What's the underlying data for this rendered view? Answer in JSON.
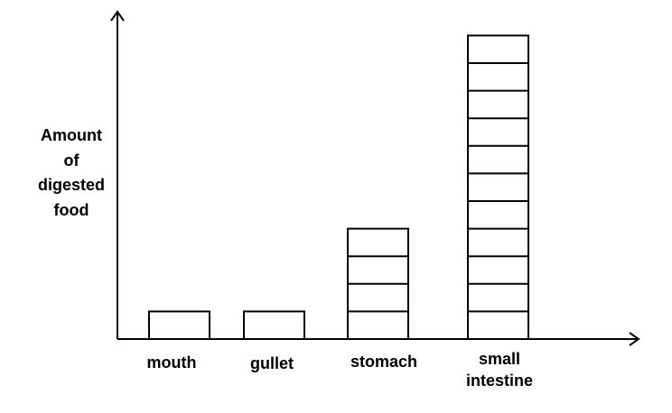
{
  "chart_data": {
    "type": "bar",
    "title": "",
    "xlabel": "",
    "ylabel_lines": [
      "Amount",
      "of",
      "digested",
      "food"
    ],
    "categories": [
      {
        "lines": [
          "mouth"
        ]
      },
      {
        "lines": [
          "gullet"
        ]
      },
      {
        "lines": [
          "stomach"
        ]
      },
      {
        "lines": [
          "small",
          "intestine"
        ]
      }
    ],
    "values": [
      1,
      1,
      4,
      11
    ],
    "ylim": [
      0,
      12
    ],
    "bars_drawn_as_stacked_units": true,
    "grid": false,
    "axis_arrows": true,
    "colors": {
      "bar_fill": "#ffffff",
      "stroke": "#000000"
    }
  }
}
